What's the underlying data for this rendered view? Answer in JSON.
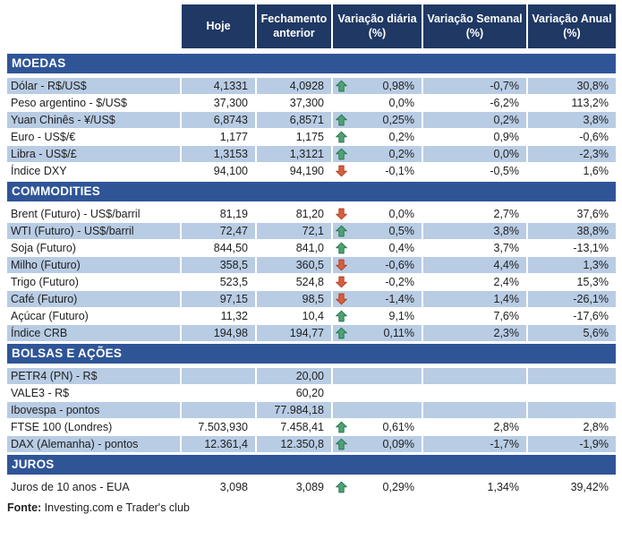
{
  "chart_data": {
    "type": "table",
    "columns": [
      "Hoje",
      "Fechamento anterior",
      "Variação diária (%)",
      "Variação Semanal (%)",
      "Variação Anual (%)"
    ],
    "sections": [
      {
        "title": "MOEDAS",
        "rows": [
          {
            "label": "Dólar - R$/US$",
            "hoje": "4,1331",
            "fechamento": "4,0928",
            "arrow": "up",
            "diaria": "0,98%",
            "semanal": "-0,7%",
            "anual": "30,8%"
          },
          {
            "label": "Peso argentino - $/US$",
            "hoje": "37,300",
            "fechamento": "37,300",
            "arrow": null,
            "diaria": "0,0%",
            "semanal": "-6,2%",
            "anual": "113,2%"
          },
          {
            "label": "Yuan Chinês - ¥/US$",
            "hoje": "6,8743",
            "fechamento": "6,8571",
            "arrow": "up",
            "diaria": "0,25%",
            "semanal": "0,2%",
            "anual": "3,8%"
          },
          {
            "label": "Euro - US$/€",
            "hoje": "1,177",
            "fechamento": "1,175",
            "arrow": "up",
            "diaria": "0,2%",
            "semanal": "0,9%",
            "anual": "-0,6%"
          },
          {
            "label": "Libra - US$/£",
            "hoje": "1,3153",
            "fechamento": "1,3121",
            "arrow": "up",
            "diaria": "0,2%",
            "semanal": "0,0%",
            "anual": "-2,3%"
          },
          {
            "label": "Índice DXY",
            "hoje": "94,100",
            "fechamento": "94,190",
            "arrow": "down",
            "diaria": "-0,1%",
            "semanal": "-0,5%",
            "anual": "1,6%"
          }
        ]
      },
      {
        "title": "COMMODITIES",
        "rows": [
          {
            "label": "Brent (Futuro) - US$/barril",
            "hoje": "81,19",
            "fechamento": "81,20",
            "arrow": "down",
            "diaria": "0,0%",
            "semanal": "2,7%",
            "anual": "37,6%"
          },
          {
            "label": "WTI (Futuro) - US$/barril",
            "hoje": "72,47",
            "fechamento": "72,1",
            "arrow": "up",
            "diaria": "0,5%",
            "semanal": "3,8%",
            "anual": "38,8%"
          },
          {
            "label": "Soja (Futuro)",
            "hoje": "844,50",
            "fechamento": "841,0",
            "arrow": "up",
            "diaria": "0,4%",
            "semanal": "3,7%",
            "anual": "-13,1%"
          },
          {
            "label": "Milho (Futuro)",
            "hoje": "358,5",
            "fechamento": "360,5",
            "arrow": "down",
            "diaria": "-0,6%",
            "semanal": "4,4%",
            "anual": "1,3%"
          },
          {
            "label": "Trigo (Futuro)",
            "hoje": "523,5",
            "fechamento": "524,8",
            "arrow": "down",
            "diaria": "-0,2%",
            "semanal": "2,4%",
            "anual": "15,3%"
          },
          {
            "label": "Café (Futuro)",
            "hoje": "97,15",
            "fechamento": "98,5",
            "arrow": "down",
            "diaria": "-1,4%",
            "semanal": "1,4%",
            "anual": "-26,1%"
          },
          {
            "label": "Açúcar (Futuro)",
            "hoje": "11,32",
            "fechamento": "10,4",
            "arrow": "up",
            "diaria": "9,1%",
            "semanal": "7,6%",
            "anual": "-17,6%"
          },
          {
            "label": "Índice CRB",
            "hoje": "194,98",
            "fechamento": "194,77",
            "arrow": "up",
            "diaria": "0,11%",
            "semanal": "2,3%",
            "anual": "5,6%"
          }
        ]
      },
      {
        "title": "BOLSAS E AÇÕES",
        "rows": [
          {
            "label": "PETR4 (PN) - R$",
            "hoje": "",
            "fechamento": "20,00",
            "arrow": null,
            "diaria": "",
            "semanal": "",
            "anual": ""
          },
          {
            "label": "VALE3 - R$",
            "hoje": "",
            "fechamento": "60,20",
            "arrow": null,
            "diaria": "",
            "semanal": "",
            "anual": ""
          },
          {
            "label": "Ibovespa - pontos",
            "hoje": "",
            "fechamento": "77.984,18",
            "arrow": null,
            "diaria": "",
            "semanal": "",
            "anual": ""
          },
          {
            "label": "FTSE 100 (Londres)",
            "hoje": "7.503,930",
            "fechamento": "7.458,41",
            "arrow": "up",
            "diaria": "0,61%",
            "semanal": "2,8%",
            "anual": "2,8%"
          },
          {
            "label": "DAX (Alemanha) - pontos",
            "hoje": "12.361,4",
            "fechamento": "12.350,8",
            "arrow": "up",
            "diaria": "0,09%",
            "semanal": "-1,7%",
            "anual": "-1,9%"
          }
        ]
      },
      {
        "title": "JUROS",
        "rows": [
          {
            "label": "Juros de 10 anos - EUA",
            "hoje": "3,098",
            "fechamento": "3,089",
            "arrow": "up",
            "diaria": "0,29%",
            "semanal": "1,34%",
            "anual": "39,42%"
          }
        ]
      }
    ]
  },
  "footer": {
    "label": "Fonte:",
    "text": " Investing.com e Trader's club"
  },
  "colors": {
    "header_bg": "#1F3864",
    "section_bg": "#2F5597",
    "row_highlight": "#B8CCE4",
    "up_arrow_fill": "#4EA273",
    "up_arrow_border": "#27724C",
    "down_arrow_fill": "#D75F3E",
    "down_arrow_border": "#AE3F24"
  }
}
